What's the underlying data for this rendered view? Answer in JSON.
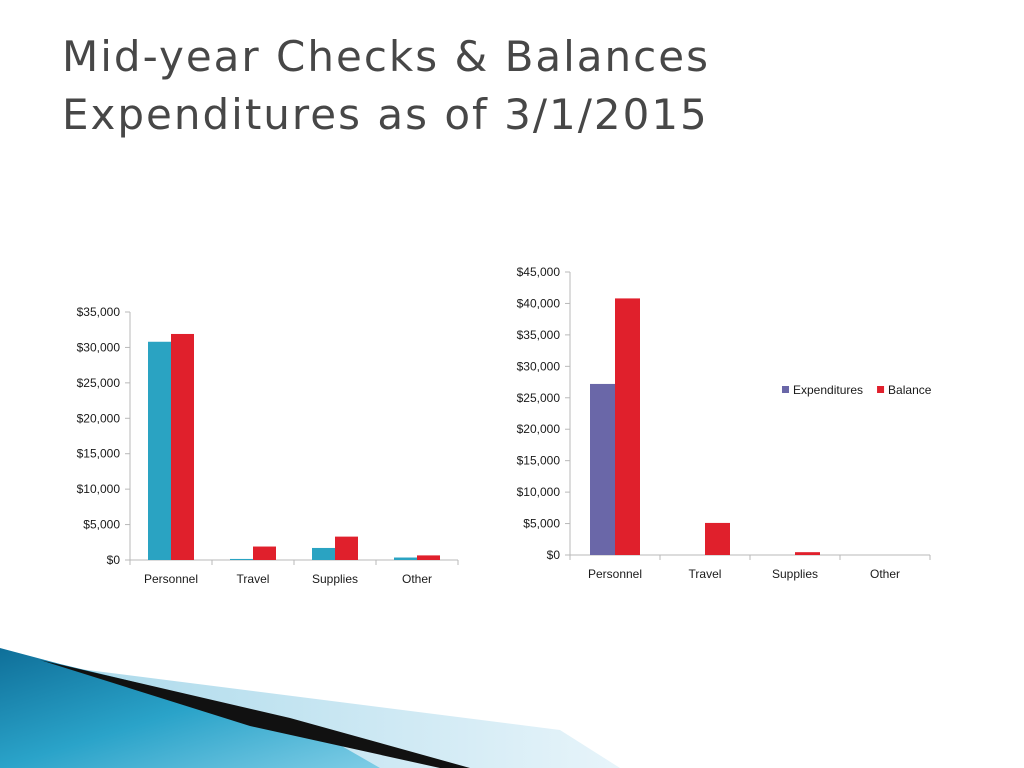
{
  "slide": {
    "title_line1": "Mid-year Checks & Balances",
    "title_line2": "Expenditures as of 3/1/2015"
  },
  "colors": {
    "title": "#474747",
    "left_series1": "#2aa3c2",
    "left_series2": "#e0202c",
    "right_expenditures": "#6a67a8",
    "right_balance": "#e0202c",
    "axis": "#b8b8b8",
    "text": "#1a1a1a"
  },
  "chart_data": [
    {
      "type": "bar",
      "categories": [
        "Personnel",
        "Travel",
        "Supplies",
        "Other"
      ],
      "series": [
        {
          "values": [
            30800,
            150,
            1700,
            350
          ]
        },
        {
          "values": [
            31900,
            1900,
            3300,
            650
          ]
        }
      ],
      "ylim": [
        0,
        35000
      ],
      "ytick_step": 5000,
      "ytick_labels": [
        "$0",
        "$5,000",
        "$10,000",
        "$15,000",
        "$20,000",
        "$25,000",
        "$30,000",
        "$35,000"
      ],
      "grid": false,
      "legend": "none"
    },
    {
      "type": "bar",
      "categories": [
        "Personnel",
        "Travel",
        "Supplies",
        "Other"
      ],
      "series": [
        {
          "name": "Expenditures",
          "values": [
            27200,
            0,
            0,
            0
          ]
        },
        {
          "name": "Balance",
          "values": [
            40800,
            5100,
            450,
            0
          ]
        }
      ],
      "ylim": [
        0,
        45000
      ],
      "ytick_step": 5000,
      "ytick_labels": [
        "$0",
        "$5,000",
        "$10,000",
        "$15,000",
        "$20,000",
        "$25,000",
        "$30,000",
        "$35,000",
        "$40,000",
        "$45,000"
      ],
      "grid": false,
      "legend": "right"
    }
  ]
}
